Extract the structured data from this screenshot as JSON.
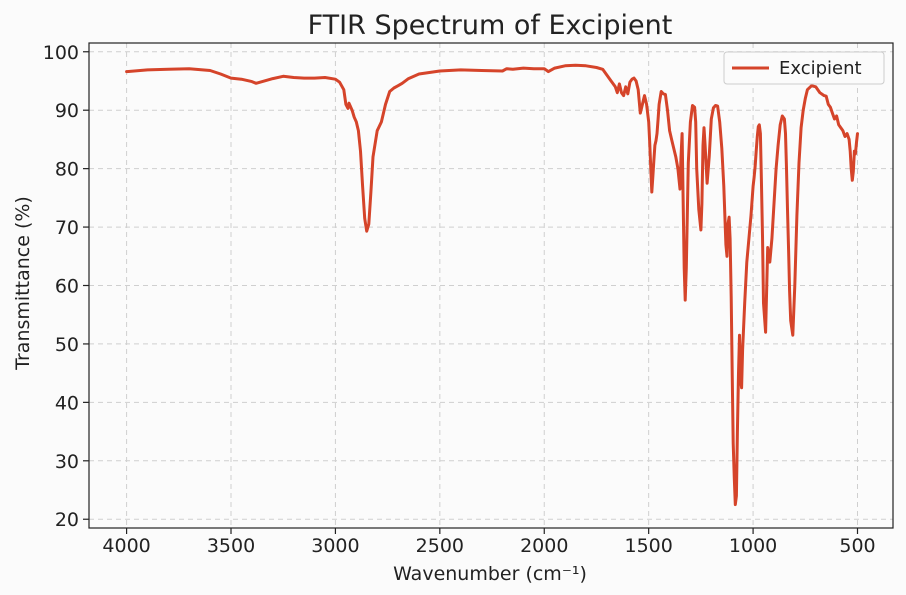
{
  "chart_data": {
    "type": "line",
    "title": "FTIR Spectrum of Excipient",
    "xlabel": "Wavenumber (cm⁻¹)",
    "ylabel": "Transmittance (%)",
    "xlim": [
      4180,
      330
    ],
    "ylim": [
      18.5,
      101.5
    ],
    "xticks": [
      4000,
      3500,
      3000,
      2500,
      2000,
      1500,
      1000,
      500
    ],
    "xtick_labels": [
      "4000",
      "3500",
      "3000",
      "2500",
      "2000",
      "1500",
      "1000",
      "500"
    ],
    "yticks": [
      20,
      30,
      40,
      50,
      60,
      70,
      80,
      90,
      100
    ],
    "ytick_labels": [
      "20",
      "30",
      "40",
      "50",
      "60",
      "70",
      "80",
      "90",
      "100"
    ],
    "grid": true,
    "legend": {
      "position": "top-right"
    },
    "series": [
      {
        "name": "Excipient",
        "color": "#d5442a",
        "x": [
          4000,
          3900,
          3800,
          3700,
          3600,
          3550,
          3500,
          3450,
          3400,
          3380,
          3350,
          3300,
          3250,
          3200,
          3150,
          3100,
          3050,
          3000,
          2980,
          2960,
          2950,
          2940,
          2935,
          2920,
          2910,
          2900,
          2890,
          2880,
          2870,
          2860,
          2850,
          2840,
          2830,
          2820,
          2800,
          2780,
          2760,
          2740,
          2720,
          2700,
          2680,
          2650,
          2600,
          2500,
          2400,
          2300,
          2200,
          2180,
          2150,
          2100,
          2050,
          2000,
          1980,
          1950,
          1900,
          1850,
          1800,
          1750,
          1720,
          1700,
          1680,
          1660,
          1650,
          1640,
          1630,
          1620,
          1610,
          1600,
          1590,
          1580,
          1570,
          1560,
          1550,
          1540,
          1530,
          1520,
          1510,
          1500,
          1495,
          1490,
          1485,
          1480,
          1475,
          1470,
          1465,
          1460,
          1455,
          1450,
          1440,
          1430,
          1420,
          1410,
          1400,
          1390,
          1380,
          1370,
          1360,
          1350,
          1345,
          1340,
          1335,
          1330,
          1325,
          1320,
          1310,
          1300,
          1290,
          1280,
          1275,
          1270,
          1260,
          1250,
          1245,
          1240,
          1235,
          1230,
          1220,
          1210,
          1200,
          1190,
          1180,
          1170,
          1160,
          1150,
          1140,
          1130,
          1125,
          1120,
          1115,
          1110,
          1105,
          1100,
          1095,
          1090,
          1085,
          1080,
          1075,
          1070,
          1065,
          1060,
          1055,
          1050,
          1040,
          1030,
          1020,
          1010,
          1000,
          995,
          990,
          985,
          980,
          975,
          970,
          965,
          960,
          955,
          950,
          940,
          930,
          920,
          910,
          900,
          890,
          880,
          870,
          860,
          850,
          845,
          840,
          835,
          830,
          825,
          820,
          810,
          800,
          790,
          780,
          770,
          760,
          750,
          740,
          720,
          700,
          680,
          660,
          650,
          640,
          630,
          620,
          610,
          600,
          590,
          580,
          570,
          560,
          550,
          540,
          535,
          530,
          525,
          520,
          515,
          510,
          505,
          500
        ],
        "y": [
          96.6,
          96.9,
          97.0,
          97.1,
          96.8,
          96.2,
          95.5,
          95.3,
          94.9,
          94.6,
          94.9,
          95.4,
          95.8,
          95.6,
          95.5,
          95.5,
          95.6,
          95.3,
          94.8,
          93.5,
          91.0,
          90.3,
          91.2,
          90.0,
          88.8,
          88.0,
          86.5,
          83.0,
          77.0,
          71.5,
          69.3,
          70.5,
          76.0,
          82.0,
          86.5,
          88.0,
          91.0,
          93.2,
          93.8,
          94.2,
          94.6,
          95.4,
          96.2,
          96.7,
          96.9,
          96.8,
          96.7,
          97.1,
          97.0,
          97.2,
          97.1,
          97.1,
          96.6,
          97.2,
          97.6,
          97.7,
          97.6,
          97.3,
          97.0,
          96.0,
          95.0,
          94.0,
          93.0,
          94.5,
          93.0,
          92.5,
          94.0,
          92.8,
          94.8,
          95.3,
          95.5,
          95.0,
          93.5,
          89.5,
          91.0,
          92.5,
          91.0,
          88.0,
          84.5,
          80.0,
          76.0,
          78.5,
          81.5,
          84.0,
          84.8,
          86.0,
          88.5,
          91.0,
          93.2,
          92.8,
          92.7,
          90.0,
          86.5,
          85.0,
          83.5,
          82.0,
          80.0,
          76.5,
          82.0,
          86.0,
          75.0,
          63.0,
          57.5,
          63.0,
          81.0,
          88.0,
          90.8,
          90.5,
          88.0,
          80.0,
          73.0,
          69.5,
          74.0,
          84.0,
          87.0,
          84.0,
          77.5,
          82.0,
          88.5,
          90.4,
          90.8,
          90.7,
          88.0,
          83.5,
          77.0,
          67.0,
          65.0,
          70.5,
          71.7,
          68.0,
          58.0,
          45.0,
          33.0,
          27.0,
          22.5,
          24.0,
          35.0,
          45.0,
          51.5,
          44.0,
          42.5,
          49.0,
          57.0,
          64.0,
          68.0,
          72.0,
          77.0,
          78.5,
          80.5,
          83.0,
          85.5,
          87.2,
          87.5,
          86.0,
          78.0,
          68.5,
          57.0,
          52.0,
          66.5,
          64.0,
          68.0,
          74.0,
          80.0,
          84.0,
          87.5,
          89.0,
          88.5,
          86.0,
          80.0,
          73.0,
          66.0,
          59.0,
          54.0,
          51.5,
          60.0,
          72.0,
          81.0,
          87.0,
          90.0,
          92.0,
          93.5,
          94.2,
          94.0,
          93.0,
          92.5,
          92.4,
          91.0,
          90.5,
          89.5,
          88.5,
          89.0,
          87.5,
          87.0,
          86.5,
          85.5,
          86.0,
          85.0,
          83.0,
          80.0,
          78.0,
          79.5,
          83.0,
          82.5,
          84.5,
          86.0
        ]
      }
    ]
  }
}
